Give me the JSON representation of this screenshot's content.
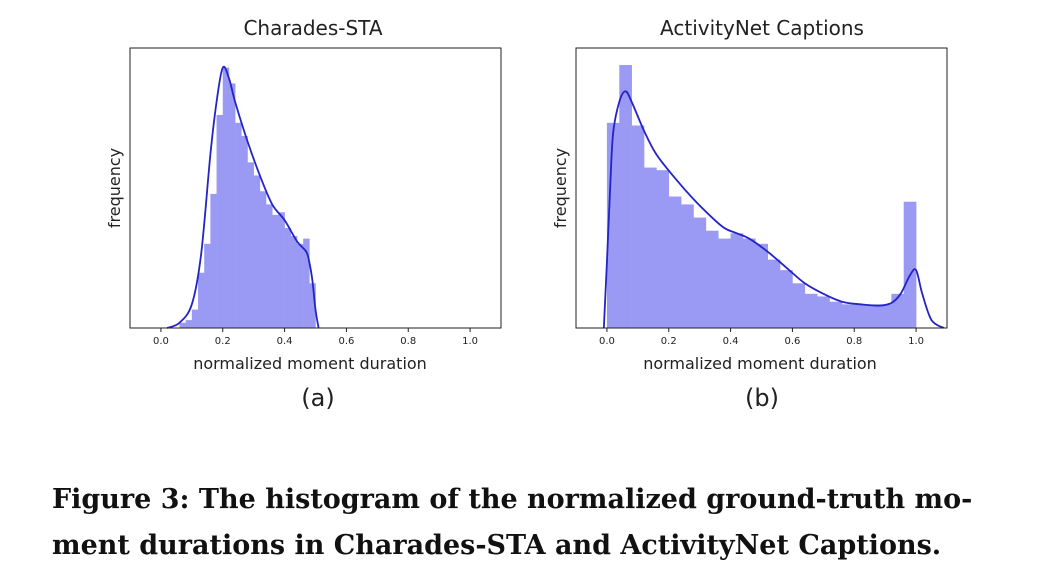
{
  "figure": {
    "caption": "Figure 3: The histogram of the normalized ground-truth mo- ment durations in Charades-STA and ActivityNet Captions.",
    "caption_line1": "Figure 3: The histogram of the normalized ground-truth mo-",
    "caption_line2": "ment durations in Charades-STA and ActivityNet Captions."
  },
  "colors": {
    "bar": "#9a9af5",
    "kde_line": "#2323c8",
    "frame": "#222222"
  },
  "chart_data": [
    {
      "type": "bar",
      "title": "Charades-STA",
      "xlabel": "normalized moment duration",
      "ylabel": "frequency",
      "sublabel": "(a)",
      "xlim": [
        -0.1,
        1.1
      ],
      "ylim": [
        0,
        1.0
      ],
      "xticks": [
        "0.0",
        "0.2",
        "0.4",
        "0.6",
        "0.8",
        "1.0"
      ],
      "yticks_shown": false,
      "bin_width": 0.02,
      "bins": [
        {
          "x": 0.06,
          "y": 0.02
        },
        {
          "x": 0.08,
          "y": 0.03
        },
        {
          "x": 0.1,
          "y": 0.07
        },
        {
          "x": 0.12,
          "y": 0.21
        },
        {
          "x": 0.14,
          "y": 0.32
        },
        {
          "x": 0.16,
          "y": 0.51
        },
        {
          "x": 0.18,
          "y": 0.81
        },
        {
          "x": 0.2,
          "y": 0.99
        },
        {
          "x": 0.22,
          "y": 0.93
        },
        {
          "x": 0.24,
          "y": 0.78
        },
        {
          "x": 0.26,
          "y": 0.73
        },
        {
          "x": 0.28,
          "y": 0.63
        },
        {
          "x": 0.3,
          "y": 0.58
        },
        {
          "x": 0.32,
          "y": 0.52
        },
        {
          "x": 0.34,
          "y": 0.47
        },
        {
          "x": 0.36,
          "y": 0.43
        },
        {
          "x": 0.38,
          "y": 0.44
        },
        {
          "x": 0.4,
          "y": 0.38
        },
        {
          "x": 0.42,
          "y": 0.35
        },
        {
          "x": 0.44,
          "y": 0.32
        },
        {
          "x": 0.46,
          "y": 0.34
        },
        {
          "x": 0.48,
          "y": 0.17
        }
      ],
      "kde": {
        "x": [
          0.02,
          0.06,
          0.1,
          0.13,
          0.16,
          0.18,
          0.2,
          0.22,
          0.24,
          0.28,
          0.32,
          0.36,
          0.4,
          0.44,
          0.47,
          0.48,
          0.49,
          0.5,
          0.51
        ],
        "y": [
          0.0,
          0.02,
          0.09,
          0.28,
          0.66,
          0.86,
          0.99,
          0.95,
          0.86,
          0.71,
          0.58,
          0.47,
          0.41,
          0.33,
          0.29,
          0.25,
          0.18,
          0.07,
          0.0
        ]
      }
    },
    {
      "type": "bar",
      "title": "ActivityNet Captions",
      "xlabel": "normalized moment duration",
      "ylabel": "frequency",
      "sublabel": "(b)",
      "xlim": [
        -0.1,
        1.1
      ],
      "ylim": [
        0,
        1.0
      ],
      "xticks": [
        "0.0",
        "0.2",
        "0.4",
        "0.6",
        "0.8",
        "1.0"
      ],
      "yticks_shown": false,
      "bin_width": 0.04,
      "bins": [
        {
          "x": 0.0,
          "y": 0.78
        },
        {
          "x": 0.04,
          "y": 1.0
        },
        {
          "x": 0.08,
          "y": 0.77
        },
        {
          "x": 0.12,
          "y": 0.61
        },
        {
          "x": 0.16,
          "y": 0.6
        },
        {
          "x": 0.2,
          "y": 0.5
        },
        {
          "x": 0.24,
          "y": 0.47
        },
        {
          "x": 0.28,
          "y": 0.42
        },
        {
          "x": 0.32,
          "y": 0.37
        },
        {
          "x": 0.36,
          "y": 0.34
        },
        {
          "x": 0.4,
          "y": 0.36
        },
        {
          "x": 0.44,
          "y": 0.34
        },
        {
          "x": 0.48,
          "y": 0.32
        },
        {
          "x": 0.52,
          "y": 0.26
        },
        {
          "x": 0.56,
          "y": 0.22
        },
        {
          "x": 0.6,
          "y": 0.17
        },
        {
          "x": 0.64,
          "y": 0.13
        },
        {
          "x": 0.68,
          "y": 0.12
        },
        {
          "x": 0.72,
          "y": 0.1
        },
        {
          "x": 0.76,
          "y": 0.09
        },
        {
          "x": 0.8,
          "y": 0.09
        },
        {
          "x": 0.84,
          "y": 0.09
        },
        {
          "x": 0.88,
          "y": 0.09
        },
        {
          "x": 0.92,
          "y": 0.13
        },
        {
          "x": 0.96,
          "y": 0.48
        }
      ],
      "kde": {
        "x": [
          -0.01,
          0.0,
          0.01,
          0.02,
          0.04,
          0.06,
          0.08,
          0.12,
          0.16,
          0.22,
          0.28,
          0.34,
          0.38,
          0.42,
          0.46,
          0.52,
          0.58,
          0.64,
          0.7,
          0.76,
          0.82,
          0.88,
          0.92,
          0.95,
          0.98,
          1.0,
          1.02,
          1.05,
          1.09
        ],
        "y": [
          0.0,
          0.25,
          0.52,
          0.74,
          0.86,
          0.9,
          0.86,
          0.75,
          0.66,
          0.57,
          0.49,
          0.42,
          0.38,
          0.36,
          0.34,
          0.29,
          0.23,
          0.17,
          0.13,
          0.1,
          0.09,
          0.085,
          0.095,
          0.13,
          0.2,
          0.22,
          0.13,
          0.03,
          0.0
        ]
      }
    }
  ]
}
